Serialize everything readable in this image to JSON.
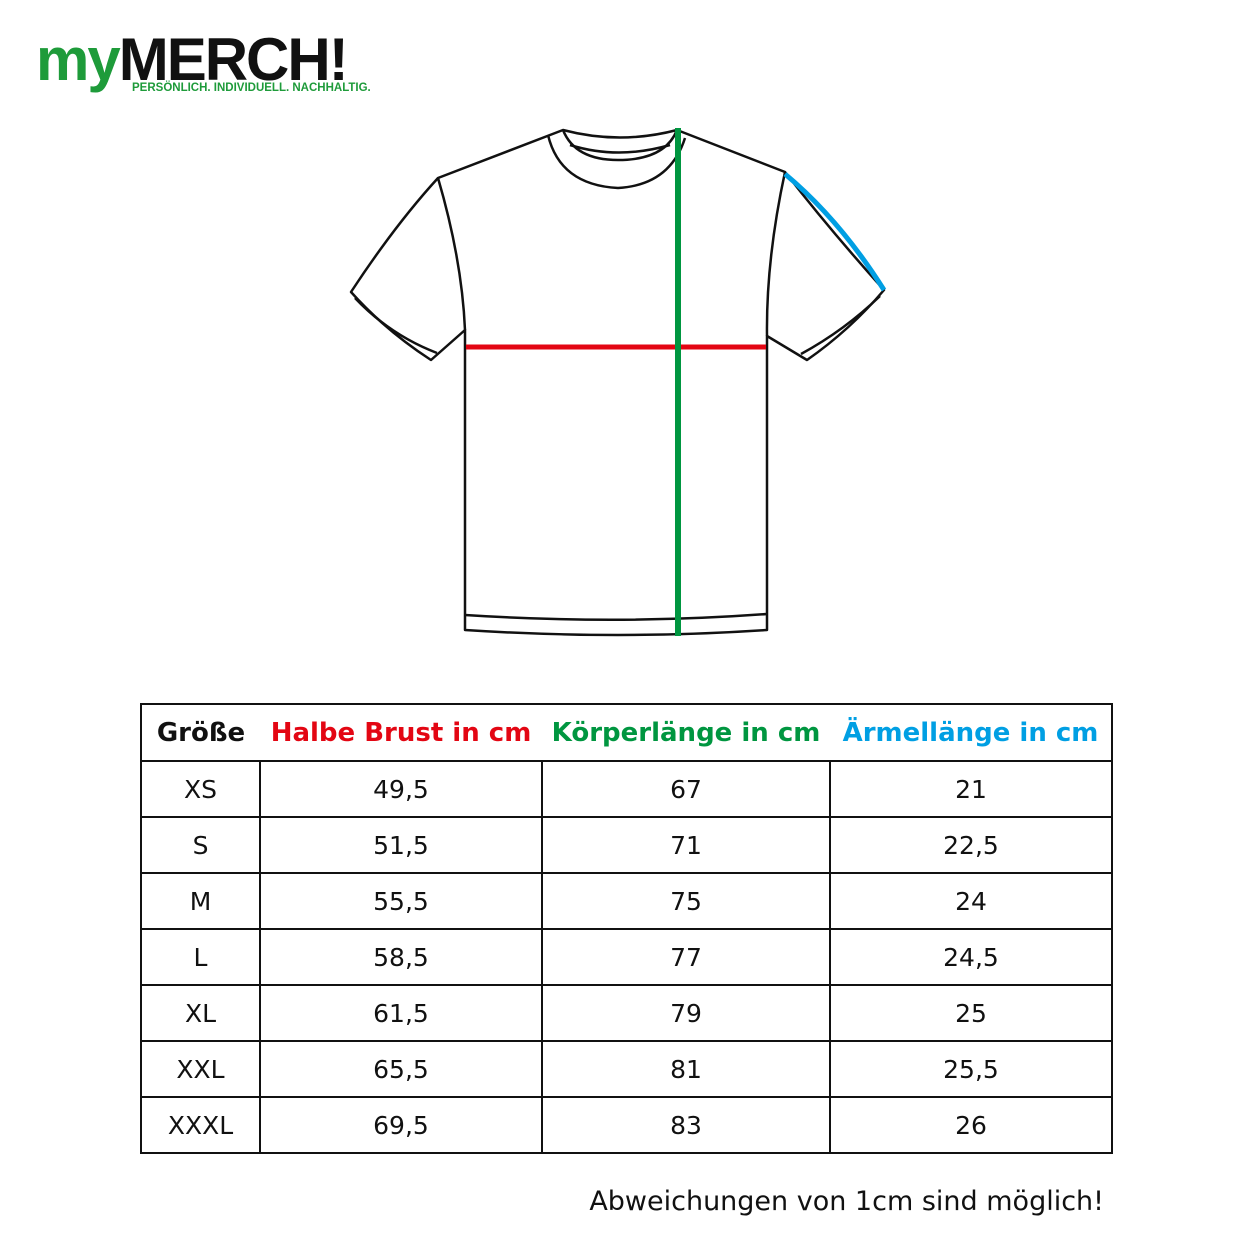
{
  "logo": {
    "part1": "my",
    "part2": "MERCH!",
    "tagline": "PERSÖNLICH. INDIVIDUELL. NACHHALTIG."
  },
  "colors": {
    "chest": "#e30613",
    "length": "#009640",
    "sleeve": "#009fe3",
    "logo_green": "#1e9b3a"
  },
  "table": {
    "headers": [
      {
        "label": "Größe",
        "color": "#111111"
      },
      {
        "label": "Halbe Brust in cm",
        "color": "#e30613"
      },
      {
        "label": "Körperlänge in cm",
        "color": "#009640"
      },
      {
        "label": "Ärmellänge in cm",
        "color": "#009fe3"
      }
    ],
    "rows": [
      [
        "XS",
        "49,5",
        "67",
        "21"
      ],
      [
        "S",
        "51,5",
        "71",
        "22,5"
      ],
      [
        "M",
        "55,5",
        "75",
        "24"
      ],
      [
        "L",
        "58,5",
        "77",
        "24,5"
      ],
      [
        "XL",
        "61,5",
        "79",
        "25"
      ],
      [
        "XXL",
        "65,5",
        "81",
        "25,5"
      ],
      [
        "XXXL",
        "69,5",
        "83",
        "26"
      ]
    ]
  },
  "note": "Abweichungen von 1cm sind möglich!"
}
